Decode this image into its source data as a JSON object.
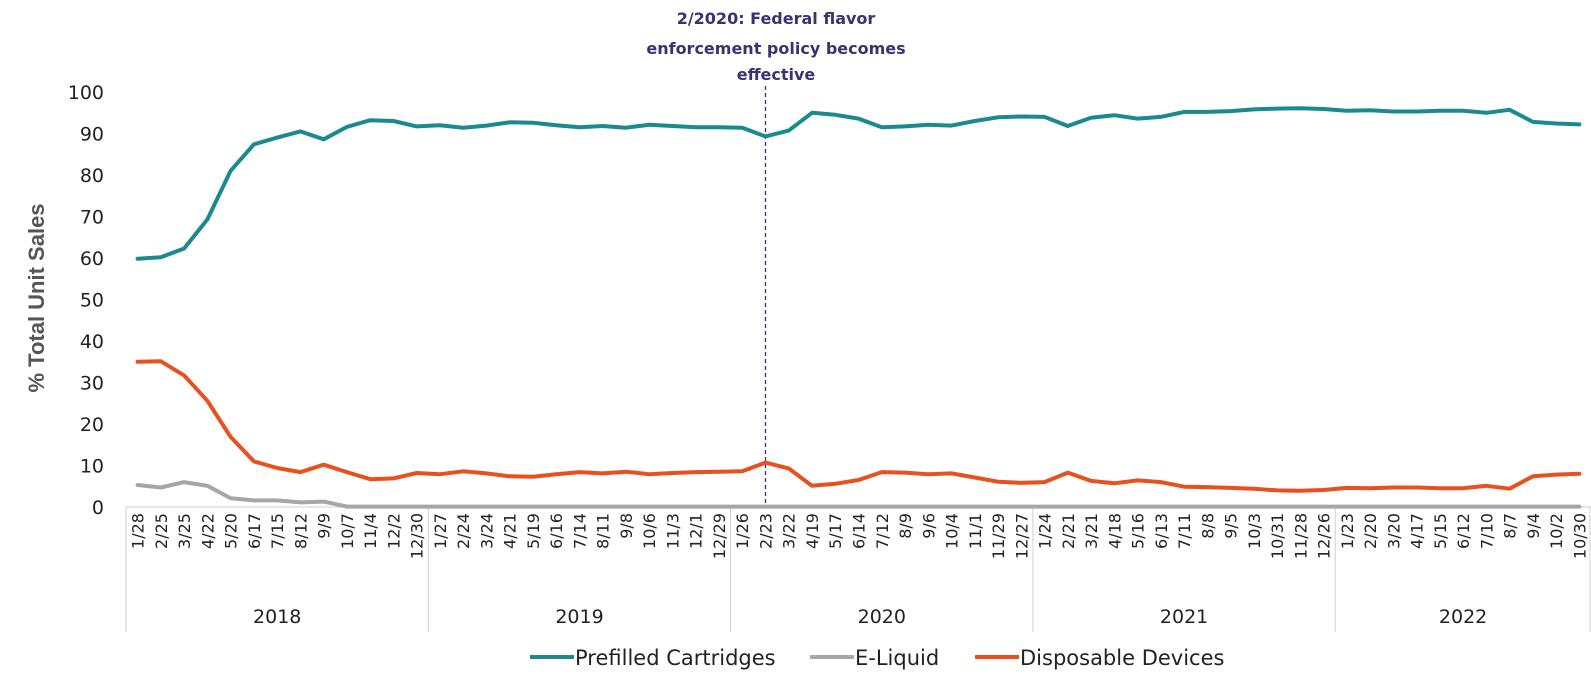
{
  "chart_data": {
    "type": "line",
    "ylabel": "% Total Unit Sales",
    "xlabel": "",
    "ylim": [
      0,
      100
    ],
    "yticks": [
      0,
      10,
      20,
      30,
      40,
      50,
      60,
      70,
      80,
      90,
      100
    ],
    "grid": false,
    "legend_position": "bottom",
    "annotation": {
      "text_lines": [
        "2/2020: Federal flavor",
        "enforcement policy becomes",
        "effective"
      ],
      "x_category": "2/23",
      "year": "2020"
    },
    "years": [
      "2018",
      "2019",
      "2020",
      "2021",
      "2022"
    ],
    "categories": [
      "1/28",
      "2/25",
      "3/25",
      "4/22",
      "5/20",
      "6/17",
      "7/15",
      "8/12",
      "9/9",
      "10/7",
      "11/4",
      "12/2",
      "12/30",
      "1/27",
      "2/24",
      "3/24",
      "4/21",
      "5/19",
      "6/16",
      "7/14",
      "8/11",
      "9/8",
      "10/6",
      "11/3",
      "12/1",
      "12/29",
      "1/26",
      "2/23",
      "3/22",
      "4/19",
      "5/17",
      "6/14",
      "7/12",
      "8/9",
      "9/6",
      "10/4",
      "11/1",
      "11/29",
      "12/27",
      "1/24",
      "2/21",
      "3/21",
      "4/18",
      "5/16",
      "6/13",
      "7/11",
      "8/8",
      "9/5",
      "10/3",
      "10/31",
      "11/28",
      "12/26",
      "1/23",
      "2/20",
      "3/20",
      "4/17",
      "5/15",
      "6/12",
      "7/10",
      "8/7",
      "9/4",
      "10/2",
      "10/30"
    ],
    "year_of_category": [
      "2018",
      "2018",
      "2018",
      "2018",
      "2018",
      "2018",
      "2018",
      "2018",
      "2018",
      "2018",
      "2018",
      "2018",
      "2018",
      "2019",
      "2019",
      "2019",
      "2019",
      "2019",
      "2019",
      "2019",
      "2019",
      "2019",
      "2019",
      "2019",
      "2019",
      "2019",
      "2020",
      "2020",
      "2020",
      "2020",
      "2020",
      "2020",
      "2020",
      "2020",
      "2020",
      "2020",
      "2020",
      "2020",
      "2020",
      "2021",
      "2021",
      "2021",
      "2021",
      "2021",
      "2021",
      "2021",
      "2021",
      "2021",
      "2021",
      "2021",
      "2021",
      "2021",
      "2022",
      "2022",
      "2022",
      "2022",
      "2022",
      "2022",
      "2022",
      "2022",
      "2022",
      "2022",
      "2022"
    ],
    "series": [
      {
        "name": "Prefilled Cartridges",
        "color": "#1a8a8f",
        "values": [
          59.8,
          60.2,
          62.3,
          69.3,
          81.0,
          87.4,
          89.0,
          90.5,
          88.6,
          91.6,
          93.2,
          93.0,
          91.7,
          92.0,
          91.4,
          91.9,
          92.7,
          92.6,
          92.0,
          91.5,
          91.8,
          91.4,
          92.1,
          91.8,
          91.5,
          91.5,
          91.4,
          89.3,
          90.7,
          95.0,
          94.5,
          93.6,
          91.5,
          91.7,
          92.1,
          91.9,
          93.0,
          93.9,
          94.1,
          94.0,
          91.8,
          93.8,
          94.4,
          93.6,
          94.0,
          95.2,
          95.2,
          95.4,
          95.8,
          96.0,
          96.1,
          95.9,
          95.5,
          95.6,
          95.3,
          95.3,
          95.5,
          95.5,
          95.0,
          95.7,
          92.8,
          92.4,
          92.2
        ]
      },
      {
        "name": "E-Liquid",
        "color": "#a6a6a6",
        "values": [
          5.3,
          4.7,
          6.0,
          5.1,
          2.1,
          1.6,
          1.6,
          1.1,
          1.3,
          0.1,
          0.1,
          0.1,
          0.1,
          0.1,
          0.1,
          0.1,
          0.1,
          0.1,
          0.1,
          0.1,
          0.1,
          0.1,
          0.1,
          0.1,
          0.1,
          0.1,
          0.1,
          0.1,
          0.1,
          0.1,
          0.1,
          0.1,
          0.1,
          0.1,
          0.1,
          0.1,
          0.1,
          0.1,
          0.1,
          0.1,
          0.1,
          0.1,
          0.1,
          0.1,
          0.1,
          0.1,
          0.1,
          0.1,
          0.1,
          0.1,
          0.1,
          0.1,
          0.1,
          0.1,
          0.1,
          0.1,
          0.1,
          0.1,
          0.1,
          0.1,
          0.1,
          0.1,
          0.1
        ]
      },
      {
        "name": "Disposable Devices",
        "color": "#e8501e",
        "values": [
          35.0,
          35.1,
          31.7,
          25.6,
          16.9,
          11.0,
          9.4,
          8.4,
          10.2,
          8.4,
          6.7,
          6.9,
          8.2,
          7.9,
          8.6,
          8.1,
          7.4,
          7.3,
          7.9,
          8.4,
          8.1,
          8.5,
          7.9,
          8.2,
          8.4,
          8.5,
          8.6,
          10.7,
          9.3,
          5.1,
          5.6,
          6.5,
          8.4,
          8.3,
          7.9,
          8.1,
          7.1,
          6.1,
          5.8,
          6.0,
          8.3,
          6.3,
          5.7,
          6.4,
          6.0,
          4.9,
          4.8,
          4.6,
          4.4,
          4.0,
          3.9,
          4.1,
          4.6,
          4.5,
          4.7,
          4.7,
          4.5,
          4.5,
          5.1,
          4.4,
          7.4,
          7.8,
          8.0
        ]
      }
    ]
  }
}
